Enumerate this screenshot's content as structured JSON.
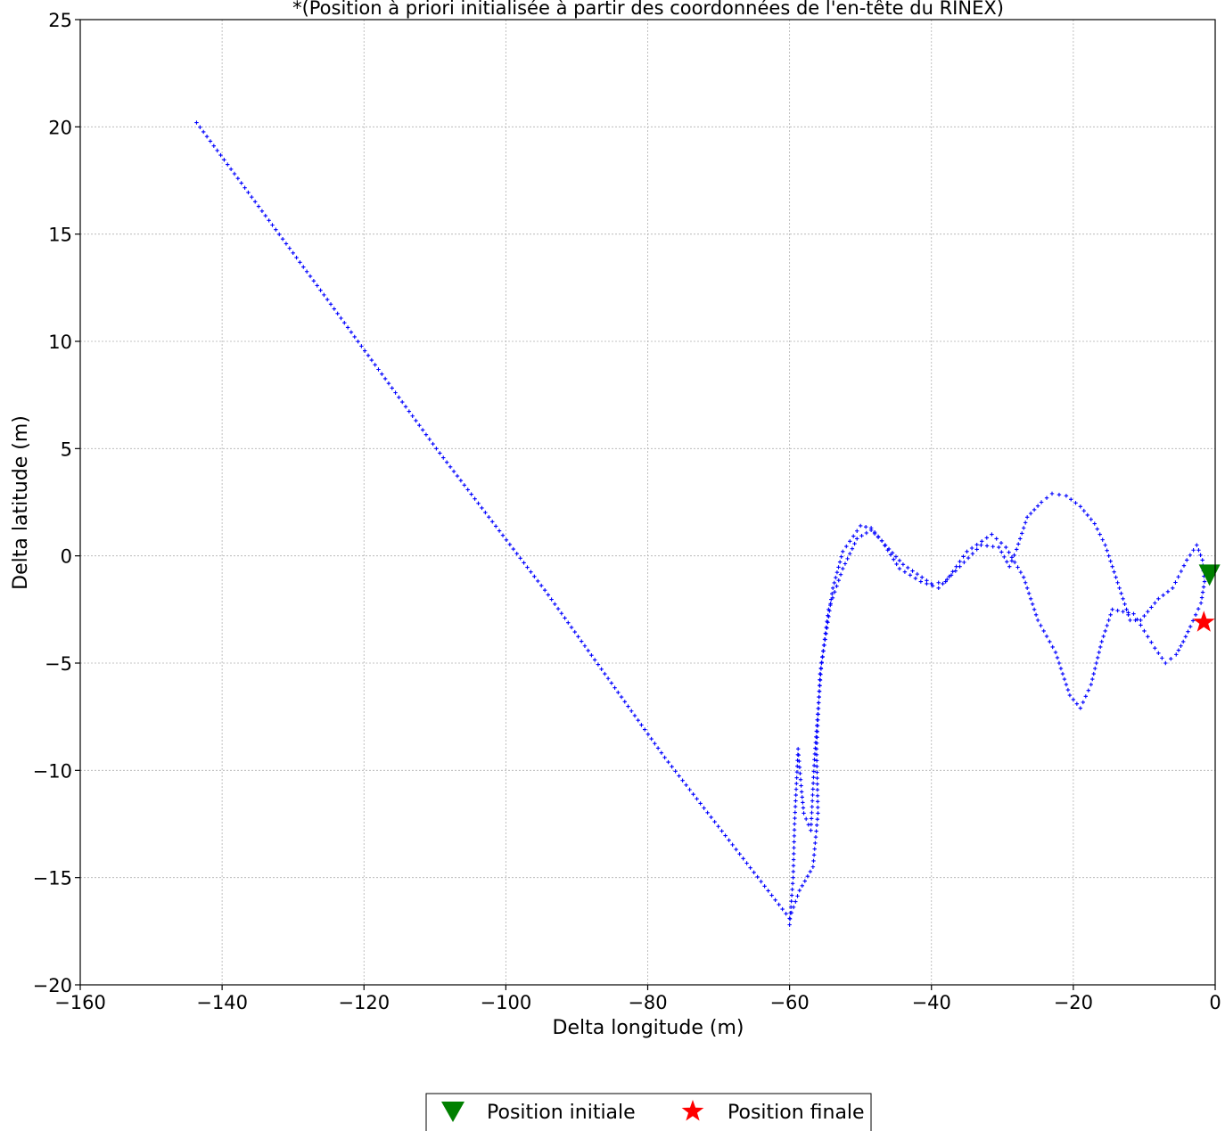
{
  "chart_data": {
    "type": "scatter",
    "title": "*(Position à priori initialisée à partir des coordonnées de l'en-tête du RINEX)",
    "xlabel": "Delta longitude (m)",
    "ylabel": "Delta latitude (m)",
    "xlim": [
      -160,
      0
    ],
    "ylim": [
      -20,
      25
    ],
    "xticks": [
      -160,
      -140,
      -120,
      -100,
      -80,
      -60,
      -40,
      -20,
      0
    ],
    "yticks": [
      -20,
      -15,
      -10,
      -5,
      0,
      5,
      10,
      15,
      20,
      25
    ],
    "xtick_labels": [
      "−160",
      "−140",
      "−120",
      "−100",
      "−80",
      "−60",
      "−40",
      "−20",
      "0"
    ],
    "ytick_labels": [
      "−20",
      "−15",
      "−10",
      "−5",
      "0",
      "5",
      "10",
      "15",
      "20",
      "25"
    ],
    "grid": true,
    "legend_position": "bottom-center",
    "colors": {
      "track": "#0000ff",
      "initial": "#008000",
      "final": "#ff0000"
    },
    "series": [
      {
        "marker": "plus",
        "path": [
          [
            -143.6,
            20.2
          ],
          [
            -126.6,
            12.6
          ],
          [
            -109.8,
            5.0
          ],
          [
            -94.5,
            -1.6
          ],
          [
            -77.6,
            -9.4
          ],
          [
            -60.0,
            -16.9
          ],
          [
            -58.6,
            -15.6
          ],
          [
            -56.7,
            -14.5
          ],
          [
            -56.0,
            -12.0
          ],
          [
            -56.2,
            -9.0
          ],
          [
            -55.7,
            -5.5
          ],
          [
            -53.9,
            -1.5
          ],
          [
            -52.5,
            0.2
          ],
          [
            -50.0,
            1.4
          ],
          [
            -48.5,
            1.3
          ],
          [
            -46.5,
            0.5
          ],
          [
            -44.0,
            -0.4
          ],
          [
            -40.0,
            -1.3
          ],
          [
            -38.0,
            -1.2
          ],
          [
            -35.0,
            0.2
          ],
          [
            -31.5,
            1.0
          ],
          [
            -29.5,
            0.4
          ],
          [
            -27.0,
            -1.0
          ],
          [
            -25.0,
            -3.0
          ],
          [
            -22.5,
            -4.5
          ],
          [
            -20.5,
            -6.5
          ],
          [
            -19.0,
            -7.1
          ],
          [
            -17.5,
            -6.0
          ],
          [
            -16.0,
            -4.0
          ],
          [
            -14.5,
            -2.5
          ],
          [
            -13.0,
            -2.6
          ],
          [
            -11.5,
            -2.7
          ],
          [
            -10.0,
            -3.5
          ],
          [
            -8.5,
            -4.3
          ],
          [
            -7.0,
            -5.0
          ],
          [
            -5.5,
            -4.6
          ],
          [
            -4.5,
            -4.0
          ],
          [
            -3.5,
            -3.3
          ],
          [
            -2.0,
            -2.2
          ],
          [
            -1.5,
            -1.2
          ],
          [
            -1.8,
            -0.2
          ],
          [
            -2.6,
            0.5
          ],
          [
            -4.0,
            -0.2
          ],
          [
            -6.0,
            -1.5
          ],
          [
            -8.0,
            -2.0
          ],
          [
            -10.5,
            -3.0
          ],
          [
            -12.0,
            -3.0
          ],
          [
            -14.0,
            -1.0
          ],
          [
            -15.5,
            0.5
          ],
          [
            -17.0,
            1.5
          ],
          [
            -19.0,
            2.3
          ],
          [
            -21.0,
            2.8
          ],
          [
            -23.0,
            2.9
          ],
          [
            -24.5,
            2.5
          ],
          [
            -26.5,
            1.8
          ],
          [
            -28.0,
            0.3
          ],
          [
            -29.0,
            -0.5
          ],
          [
            -30.5,
            0.4
          ],
          [
            -33.0,
            0.5
          ],
          [
            -36.0,
            -0.5
          ],
          [
            -39.0,
            -1.5
          ],
          [
            -41.5,
            -1.2
          ],
          [
            -44.5,
            -0.6
          ],
          [
            -47.0,
            0.7
          ],
          [
            -48.5,
            1.2
          ],
          [
            -50.5,
            0.8
          ],
          [
            -52.5,
            -0.6
          ],
          [
            -54.5,
            -2.5
          ],
          [
            -55.5,
            -5.0
          ],
          [
            -56.5,
            -9.5
          ],
          [
            -57.0,
            -12.8
          ],
          [
            -58.0,
            -12.0
          ],
          [
            -58.3,
            -11.0
          ],
          [
            -58.8,
            -9.0
          ],
          [
            -59.3,
            -12.5
          ],
          [
            -59.5,
            -15.0
          ],
          [
            -60.0,
            -17.2
          ]
        ]
      }
    ],
    "markers": [
      {
        "name": "Position initiale",
        "x": -0.8,
        "y": -0.9,
        "marker": "triangle-down",
        "color": "#008000"
      },
      {
        "name": "Position finale",
        "x": -1.6,
        "y": -3.1,
        "marker": "star",
        "color": "#ff0000"
      }
    ],
    "legend": [
      "Position initiale",
      "Position finale"
    ]
  }
}
